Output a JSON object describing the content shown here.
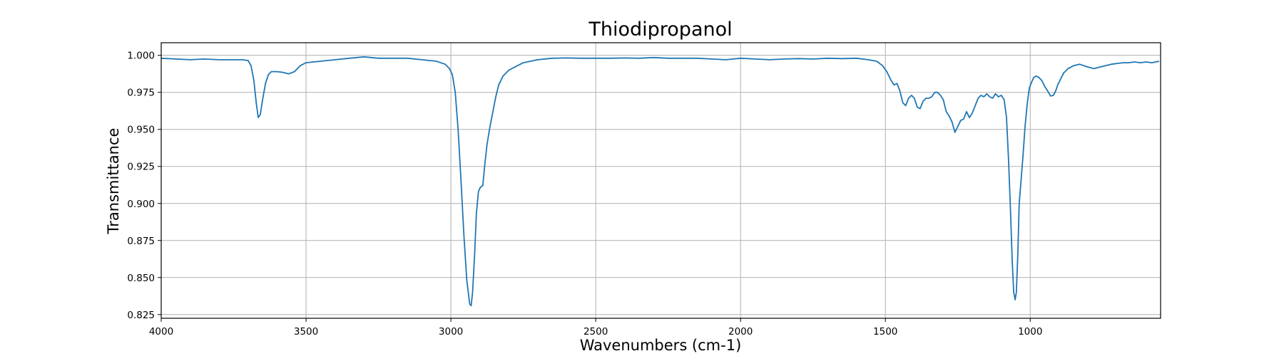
{
  "chart_data": {
    "type": "line",
    "title": "Thiodipropanol",
    "xlabel": "Wavenumbers (cm-1)",
    "ylabel": "Transmittance",
    "xlim": [
      4000,
      550
    ],
    "ylim": [
      0.8225,
      1.0085
    ],
    "x_ticks": [
      4000,
      3500,
      3000,
      2500,
      2000,
      1500,
      1000
    ],
    "x_tick_labels": [
      "4000",
      "3500",
      "3000",
      "2500",
      "2000",
      "1500",
      "1000"
    ],
    "y_ticks": [
      0.825,
      0.85,
      0.875,
      0.9,
      0.925,
      0.95,
      0.975,
      1.0
    ],
    "y_tick_labels": [
      "0.825",
      "0.850",
      "0.875",
      "0.900",
      "0.925",
      "0.950",
      "0.975",
      "1.000"
    ],
    "grid": true,
    "series": [
      {
        "color": "#1f77b4",
        "x": [
          4000,
          3950,
          3900,
          3850,
          3800,
          3750,
          3720,
          3700,
          3690,
          3680,
          3672,
          3665,
          3658,
          3650,
          3640,
          3630,
          3620,
          3600,
          3580,
          3560,
          3540,
          3520,
          3500,
          3450,
          3400,
          3350,
          3300,
          3250,
          3200,
          3150,
          3100,
          3050,
          3020,
          3005,
          2995,
          2985,
          2975,
          2965,
          2955,
          2945,
          2935,
          2930,
          2925,
          2918,
          2912,
          2905,
          2898,
          2890,
          2882,
          2875,
          2865,
          2855,
          2845,
          2835,
          2820,
          2800,
          2780,
          2750,
          2700,
          2650,
          2600,
          2550,
          2500,
          2450,
          2400,
          2350,
          2300,
          2250,
          2200,
          2150,
          2100,
          2050,
          2000,
          1950,
          1900,
          1850,
          1800,
          1750,
          1700,
          1650,
          1600,
          1560,
          1530,
          1510,
          1495,
          1480,
          1470,
          1460,
          1450,
          1440,
          1430,
          1420,
          1410,
          1400,
          1390,
          1380,
          1370,
          1360,
          1350,
          1340,
          1330,
          1320,
          1310,
          1300,
          1290,
          1280,
          1270,
          1260,
          1250,
          1240,
          1230,
          1220,
          1210,
          1200,
          1190,
          1180,
          1170,
          1160,
          1150,
          1140,
          1130,
          1120,
          1110,
          1100,
          1090,
          1082,
          1075,
          1068,
          1062,
          1057,
          1052,
          1048,
          1043,
          1038,
          1032,
          1025,
          1018,
          1010,
          1003,
          995,
          988,
          980,
          970,
          960,
          950,
          940,
          930,
          920,
          912,
          905,
          895,
          885,
          870,
          850,
          830,
          800,
          780,
          760,
          740,
          720,
          700,
          680,
          660,
          640,
          620,
          600,
          580,
          555
        ],
        "y": [
          0.998,
          0.9975,
          0.997,
          0.9975,
          0.997,
          0.997,
          0.997,
          0.9965,
          0.993,
          0.983,
          0.968,
          0.958,
          0.96,
          0.97,
          0.981,
          0.987,
          0.989,
          0.989,
          0.9885,
          0.9875,
          0.989,
          0.993,
          0.995,
          0.996,
          0.997,
          0.998,
          0.999,
          0.998,
          0.998,
          0.998,
          0.997,
          0.996,
          0.994,
          0.991,
          0.987,
          0.975,
          0.95,
          0.915,
          0.878,
          0.848,
          0.832,
          0.831,
          0.84,
          0.866,
          0.893,
          0.908,
          0.911,
          0.912,
          0.928,
          0.94,
          0.952,
          0.962,
          0.972,
          0.98,
          0.986,
          0.99,
          0.992,
          0.995,
          0.997,
          0.998,
          0.9982,
          0.998,
          0.998,
          0.998,
          0.9982,
          0.998,
          0.9985,
          0.998,
          0.998,
          0.998,
          0.9975,
          0.997,
          0.998,
          0.9975,
          0.997,
          0.9975,
          0.9978,
          0.9975,
          0.998,
          0.9978,
          0.998,
          0.997,
          0.996,
          0.993,
          0.989,
          0.983,
          0.98,
          0.981,
          0.976,
          0.968,
          0.966,
          0.971,
          0.973,
          0.971,
          0.965,
          0.964,
          0.969,
          0.971,
          0.971,
          0.972,
          0.975,
          0.975,
          0.973,
          0.97,
          0.962,
          0.959,
          0.955,
          0.948,
          0.952,
          0.956,
          0.957,
          0.962,
          0.958,
          0.961,
          0.966,
          0.971,
          0.973,
          0.972,
          0.974,
          0.972,
          0.971,
          0.974,
          0.972,
          0.973,
          0.97,
          0.958,
          0.93,
          0.895,
          0.86,
          0.84,
          0.835,
          0.84,
          0.865,
          0.9,
          0.915,
          0.932,
          0.952,
          0.968,
          0.978,
          0.982,
          0.985,
          0.986,
          0.985,
          0.983,
          0.979,
          0.976,
          0.9725,
          0.973,
          0.976,
          0.98,
          0.984,
          0.988,
          0.991,
          0.993,
          0.994,
          0.992,
          0.991,
          0.992,
          0.993,
          0.994,
          0.9945,
          0.995,
          0.995,
          0.9955,
          0.995,
          0.9955,
          0.995,
          0.996
        ]
      }
    ]
  }
}
